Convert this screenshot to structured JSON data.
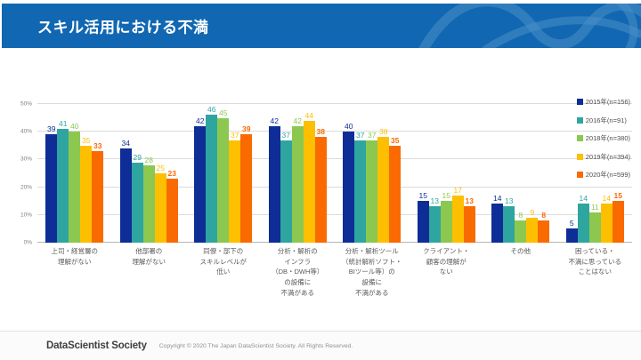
{
  "header": {
    "title": "スキル活用における不満"
  },
  "colors": {
    "header_bg": "#1167b1",
    "header_swirl": "#4a8fc9",
    "gridline": "#dcdcdc",
    "series_2015": "#0e2d96",
    "series_2016": "#2fa5a0",
    "series_2018": "#8cc850",
    "series_2019": "#fdbf00",
    "series_2020": "#f96a00"
  },
  "chart_data": {
    "type": "bar",
    "title": "スキル活用における不満",
    "xlabel": "",
    "ylabel": "",
    "ylim": [
      0,
      50
    ],
    "yticks": [
      "0%",
      "10%",
      "20%",
      "30%",
      "40%",
      "50%"
    ],
    "grid": true,
    "legend_position": "top-right",
    "categories": [
      "上司・経営層の理解がない",
      "他部署の理解がない",
      "同僚・部下のスキルレベルが低い",
      "分析・解析のインフラ（DB・DWH等）の設備に不満がある",
      "分析・解析ツール（統計解析ソフト・BIツール等）の設備に不満がある",
      "クライアント・顧客の理解がない",
      "その他",
      "困っている・不満に思っていることはない"
    ],
    "category_lines": [
      [
        "上司・経営層の",
        "理解がない"
      ],
      [
        "他部署の",
        "理解がない"
      ],
      [
        "同僚・部下の",
        "スキルレベルが",
        "低い"
      ],
      [
        "分析・解析の",
        "インフラ",
        "（DB・DWH等）",
        "の設備に",
        "不満がある"
      ],
      [
        "分析・解析ツール",
        "（統計解析ソフト・",
        "BIツール等）の",
        "設備に",
        "不満がある"
      ],
      [
        "クライアント・",
        "顧客の理解が",
        "ない"
      ],
      [
        "その他"
      ],
      [
        "困っている・",
        "不満に思っている",
        "ことはない"
      ]
    ],
    "series": [
      {
        "name": "2015年(n=156)",
        "color": "#0e2d96",
        "bold_labels": false,
        "values": [
          39,
          34,
          42,
          42,
          40,
          15,
          14,
          5
        ]
      },
      {
        "name": "2016年(n=91)",
        "color": "#2fa5a0",
        "bold_labels": false,
        "values": [
          41,
          29,
          46,
          37,
          37,
          13,
          13,
          14
        ]
      },
      {
        "name": "2018年(n=380)",
        "color": "#8cc850",
        "bold_labels": false,
        "values": [
          40,
          28,
          45,
          42,
          37,
          15,
          8,
          11
        ]
      },
      {
        "name": "2019年(n=394)",
        "color": "#fdbf00",
        "bold_labels": false,
        "values": [
          35,
          25,
          37,
          44,
          38,
          17,
          9,
          14
        ]
      },
      {
        "name": "2020年(n=599)",
        "color": "#f96a00",
        "bold_labels": true,
        "values": [
          33,
          23,
          39,
          38,
          35,
          13,
          8,
          15
        ]
      }
    ]
  },
  "footer": {
    "logo": "DataScientist Society",
    "copyright": "Copyright © 2020  The Japan DataScientist Society. All Rights Reserved."
  }
}
